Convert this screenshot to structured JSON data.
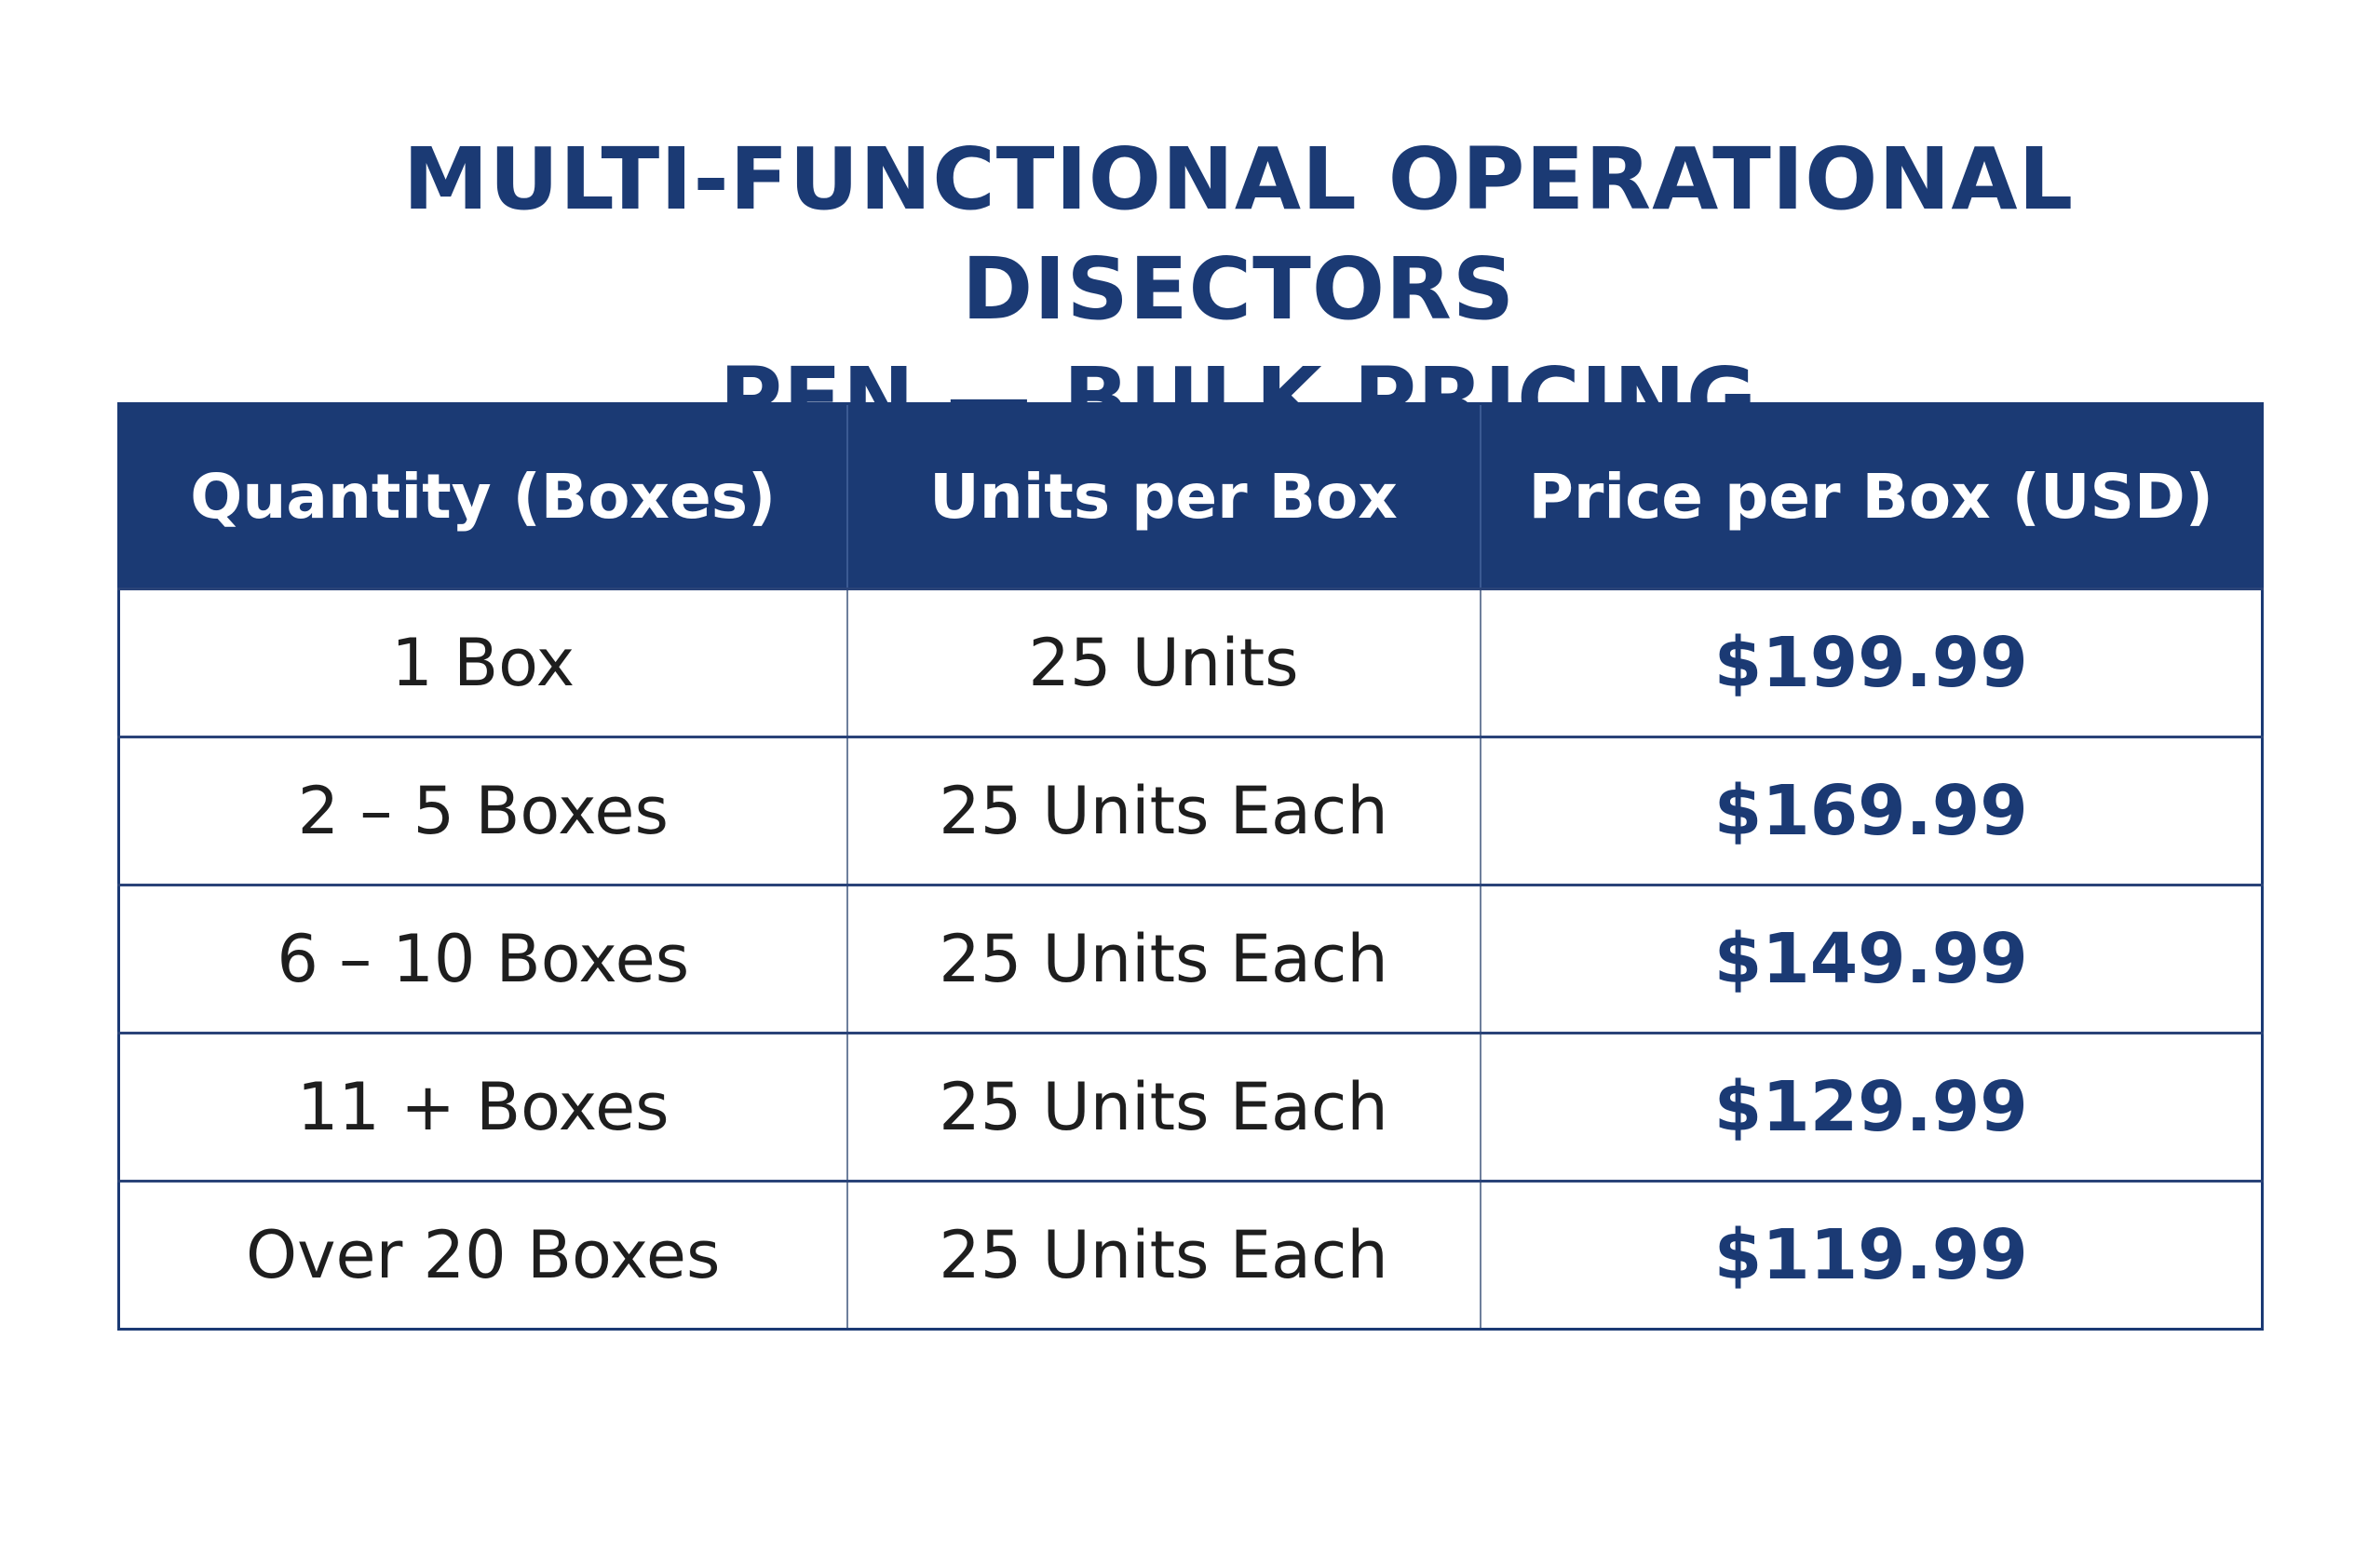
{
  "title": {
    "line1": "MULTI-FUNCTIONAL OPERATIONAL DISECTORS",
    "line2": "PEN — BULK PRICING"
  },
  "table": {
    "headers": [
      "Quantity (Boxes)",
      "Units per Box",
      "Price per Box (USD)"
    ],
    "rows": [
      {
        "quantity": "1 Box",
        "units": "25 Units",
        "price": "$199.99"
      },
      {
        "quantity": "2 – 5 Boxes",
        "units": "25 Units Each",
        "price": "$169.99"
      },
      {
        "quantity": "6 – 10 Boxes",
        "units": "25 Units Each",
        "price": "$149.99"
      },
      {
        "quantity": "11 + Boxes",
        "units": "25 Units Each",
        "price": "$129.99"
      },
      {
        "quantity": "Over 20 Boxes",
        "units": "25 Units Each",
        "price": "$119.99"
      }
    ]
  },
  "colors": {
    "accent": "#1b3a74",
    "header_text": "#ffffff",
    "body_text": "#1e1e1e"
  }
}
